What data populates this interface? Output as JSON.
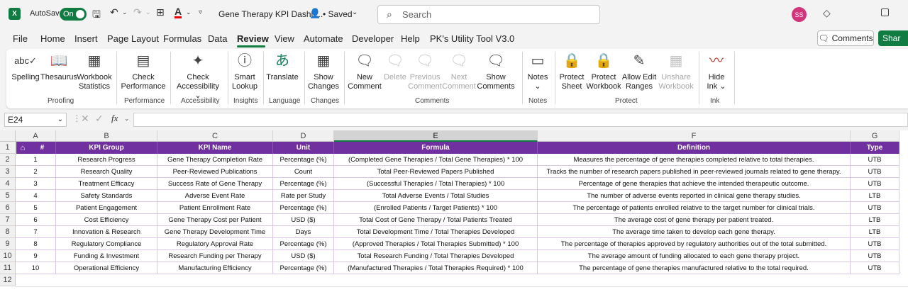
{
  "titlebar": {
    "autosave_label": "AutoSave",
    "autosave_state": "On",
    "doc_title": "Gene Therapy KPI Dashb...",
    "saved_state": "• Saved",
    "search_placeholder": "Search",
    "user_initials": "SS"
  },
  "menu": {
    "tabs": [
      "File",
      "Home",
      "Insert",
      "Page Layout",
      "Formulas",
      "Data",
      "Review",
      "View",
      "Automate",
      "Developer",
      "Help",
      "PK's Utility Tool V3.0"
    ],
    "active": "Review",
    "comments_label": "Comments",
    "share_label": "Shar"
  },
  "ribbon": {
    "buttons": [
      {
        "id": "spelling",
        "line1": "Spelling",
        "line2": "",
        "icon": "abc",
        "disabled": false
      },
      {
        "id": "thesaurus",
        "line1": "Thesaurus",
        "line2": "",
        "icon": "book-icon",
        "disabled": false
      },
      {
        "id": "workbook-statistics",
        "line1": "Workbook",
        "line2": "Statistics",
        "icon": "grid-icon",
        "disabled": false
      },
      {
        "id": "check-performance",
        "line1": "Check",
        "line2": "Performance",
        "icon": "perf-icon",
        "disabled": false
      },
      {
        "id": "check-accessibility",
        "line1": "Check",
        "line2": "Accessibility ⌄",
        "icon": "person-icon",
        "disabled": false
      },
      {
        "id": "smart-lookup",
        "line1": "Smart",
        "line2": "Lookup",
        "icon": "lookup-icon",
        "disabled": false
      },
      {
        "id": "translate",
        "line1": "Translate",
        "line2": "",
        "icon": "translate-icon",
        "disabled": false
      },
      {
        "id": "show-changes",
        "line1": "Show",
        "line2": "Changes",
        "icon": "changes-icon",
        "disabled": false
      },
      {
        "id": "new-comment",
        "line1": "New",
        "line2": "Comment",
        "icon": "comment-plus-icon",
        "disabled": false
      },
      {
        "id": "delete",
        "line1": "Delete",
        "line2": "",
        "icon": "comment-x-icon",
        "disabled": true
      },
      {
        "id": "previous-comment",
        "line1": "Previous",
        "line2": "Comment",
        "icon": "comment-prev-icon",
        "disabled": true
      },
      {
        "id": "next-comment",
        "line1": "Next",
        "line2": "Comment",
        "icon": "comment-next-icon",
        "disabled": true
      },
      {
        "id": "show-comments",
        "line1": "Show",
        "line2": "Comments",
        "icon": "comments-icon",
        "disabled": false
      },
      {
        "id": "notes",
        "line1": "Notes",
        "line2": "⌄",
        "icon": "note-icon",
        "disabled": false
      },
      {
        "id": "protect-sheet",
        "line1": "Protect",
        "line2": "Sheet",
        "icon": "lock-sheet-icon",
        "disabled": false
      },
      {
        "id": "protect-workbook",
        "line1": "Protect",
        "line2": "Workbook",
        "icon": "lock-book-icon",
        "disabled": false
      },
      {
        "id": "allow-edit-ranges",
        "line1": "Allow Edit",
        "line2": "Ranges",
        "icon": "edit-ranges-icon",
        "disabled": false
      },
      {
        "id": "unshare-workbook",
        "line1": "Unshare",
        "line2": "Workbook",
        "icon": "unshare-icon",
        "disabled": true
      },
      {
        "id": "hide-ink",
        "line1": "Hide",
        "line2": "Ink ⌄",
        "icon": "ink-icon",
        "disabled": false
      }
    ],
    "groups": [
      "Proofing",
      "Performance",
      "Accessibility",
      "Insights",
      "Language",
      "Changes",
      "Comments",
      "Notes",
      "Protect",
      "Ink"
    ]
  },
  "formula_bar": {
    "name_box": "E24",
    "fx": "fx",
    "value": ""
  },
  "sheet": {
    "col_letters": [
      "A",
      "B",
      "C",
      "D",
      "E",
      "F",
      "G"
    ],
    "selected_col": "E",
    "row_numbers": [
      "1",
      "2",
      "3",
      "4",
      "5",
      "6",
      "7",
      "8",
      "9",
      "10",
      "11",
      "12"
    ],
    "headers": [
      "#",
      "KPI Group",
      "KPI Name",
      "Unit",
      "Formula",
      "Definition",
      "Type"
    ],
    "rows": [
      [
        "1",
        "Research Progress",
        "Gene Therapy Completion Rate",
        "Percentage (%)",
        "(Completed Gene Therapies / Total Gene Therapies) * 100",
        "Measures the percentage of gene therapies completed relative to total therapies.",
        "UTB"
      ],
      [
        "2",
        "Research Quality",
        "Peer-Reviewed Publications",
        "Count",
        "Total Peer-Reviewed Papers Published",
        "Tracks the number of research papers published in peer-reviewed journals related to gene therapy.",
        "UTB"
      ],
      [
        "3",
        "Treatment Efficacy",
        "Success Rate of Gene Therapy",
        "Percentage (%)",
        "(Successful Therapies / Total Therapies) * 100",
        "Percentage of gene therapies that achieve the intended therapeutic outcome.",
        "UTB"
      ],
      [
        "4",
        "Safety Standards",
        "Adverse Event Rate",
        "Rate per Study",
        "Total Adverse Events / Total Studies",
        "The number of adverse events reported in clinical gene therapy studies.",
        "LTB"
      ],
      [
        "5",
        "Patient Engagement",
        "Patient Enrollment Rate",
        "Percentage (%)",
        "(Enrolled Patients / Target Patients) * 100",
        "The percentage of patients enrolled relative to the target number for clinical trials.",
        "UTB"
      ],
      [
        "6",
        "Cost Efficiency",
        "Gene Therapy Cost per Patient",
        "USD ($)",
        "Total Cost of Gene Therapy / Total Patients Treated",
        "The average cost of gene therapy per patient treated.",
        "LTB"
      ],
      [
        "7",
        "Innovation & Research",
        "Gene Therapy Development Time",
        "Days",
        "Total Development Time / Total Therapies Developed",
        "The average time taken to develop each gene therapy.",
        "LTB"
      ],
      [
        "8",
        "Regulatory Compliance",
        "Regulatory Approval Rate",
        "Percentage (%)",
        "(Approved Therapies / Total Therapies Submitted) * 100",
        "The percentage of therapies approved by regulatory authorities out of the total submitted.",
        "UTB"
      ],
      [
        "9",
        "Funding & Investment",
        "Research Funding per Therapy",
        "USD ($)",
        "Total Research Funding / Total Therapies Developed",
        "The average amount of funding allocated to each gene therapy project.",
        "UTB"
      ],
      [
        "10",
        "Operational Efficiency",
        "Manufacturing Efficiency",
        "Percentage (%)",
        "(Manufactured Therapies / Total Therapies Required) * 100",
        "The percentage of gene therapies manufactured relative to the total required.",
        "UTB"
      ]
    ]
  }
}
